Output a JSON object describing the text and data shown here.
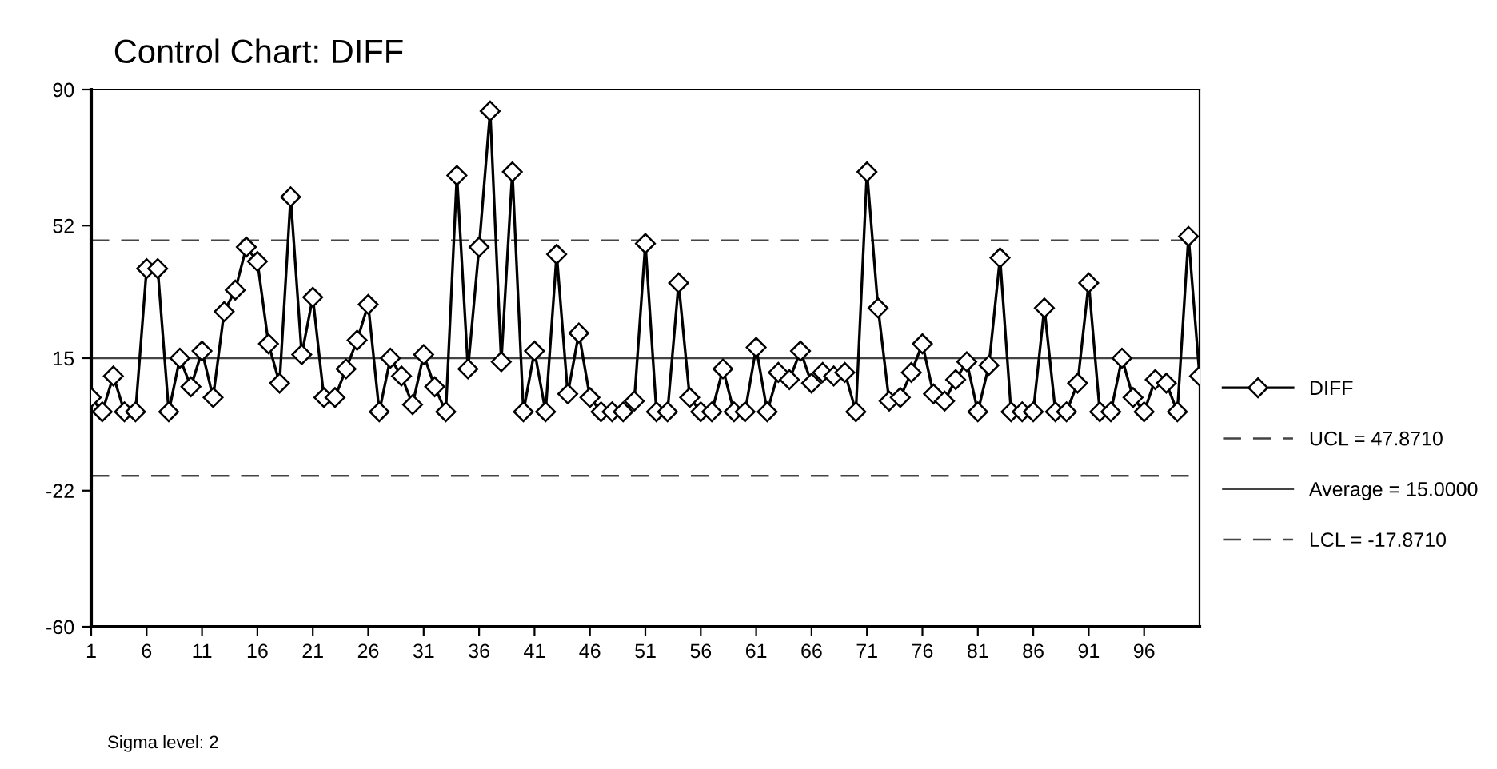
{
  "chart_data": {
    "type": "line",
    "title": "Control Chart: DIFF",
    "x": [
      1,
      2,
      3,
      4,
      5,
      6,
      7,
      8,
      9,
      10,
      11,
      12,
      13,
      14,
      15,
      16,
      17,
      18,
      19,
      20,
      21,
      22,
      23,
      24,
      25,
      26,
      27,
      28,
      29,
      30,
      31,
      32,
      33,
      34,
      35,
      36,
      37,
      38,
      39,
      40,
      41,
      42,
      43,
      44,
      45,
      46,
      47,
      48,
      49,
      50,
      51,
      52,
      53,
      54,
      55,
      56,
      57,
      58,
      59,
      60,
      61,
      62,
      63,
      64,
      65,
      66,
      67,
      68,
      69,
      70,
      71,
      72,
      73,
      74,
      75,
      76,
      77,
      78,
      79,
      80,
      81,
      82,
      83,
      84,
      85,
      86,
      87,
      88,
      89,
      90,
      91,
      92,
      93,
      94,
      95,
      96,
      97,
      98,
      99,
      100,
      101
    ],
    "series": [
      {
        "name": "DIFF",
        "color": "#000000",
        "values": [
          4,
          0,
          10,
          0,
          0,
          40,
          40,
          0,
          15,
          7,
          17,
          4,
          28,
          34,
          46,
          42,
          19,
          8,
          60,
          16,
          32,
          4,
          4,
          12,
          20,
          30,
          0,
          15,
          10,
          2,
          16,
          7,
          0,
          66,
          12,
          46,
          84,
          14,
          67,
          0,
          17,
          0,
          44,
          5,
          22,
          4,
          0,
          0,
          0,
          3,
          47,
          0,
          0,
          36,
          4,
          0,
          0,
          12,
          0,
          0,
          18,
          0,
          11,
          9,
          17,
          8,
          11,
          10,
          11,
          0,
          67,
          29,
          3,
          4,
          11,
          19,
          5,
          3,
          9,
          14,
          0,
          13,
          43,
          0,
          0,
          0,
          29,
          0,
          0,
          8,
          36,
          0,
          0,
          15,
          4,
          0,
          9,
          8,
          0,
          49,
          10
        ]
      }
    ],
    "marker": "diamond",
    "line_style": "solid",
    "xlim": [
      1,
      101
    ],
    "xticks": [
      1,
      6,
      11,
      16,
      21,
      26,
      31,
      36,
      41,
      46,
      51,
      56,
      61,
      66,
      71,
      76,
      81,
      86,
      91,
      96
    ],
    "ylim": [
      -60,
      90
    ],
    "yticks": [
      -60,
      -22,
      15,
      52,
      90
    ],
    "ref_lines": [
      {
        "axis": "y",
        "value": 47.871,
        "label": "UCL = 47.8710",
        "line_style": "dashed"
      },
      {
        "axis": "y",
        "value": 15,
        "label": "Average = 15.0000",
        "line_style": "solid"
      },
      {
        "axis": "y",
        "value": -17.871,
        "label": "LCL = -17.8710",
        "line_style": "dashed"
      }
    ],
    "grid": false,
    "legend": "right",
    "annotations": [
      "Sigma level: 2"
    ]
  }
}
